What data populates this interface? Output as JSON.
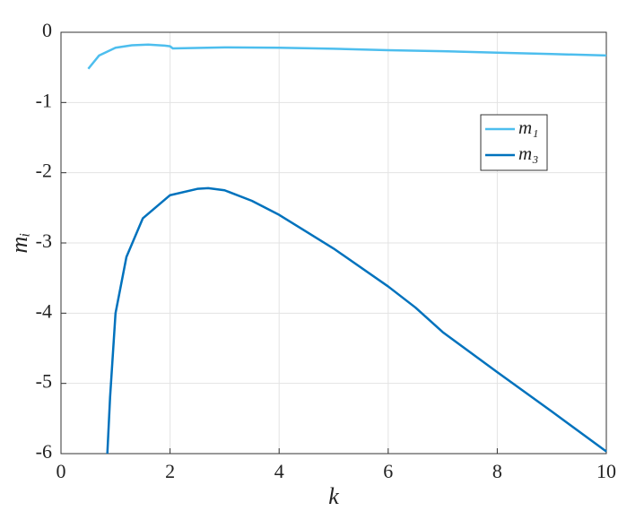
{
  "chart_data": {
    "type": "line",
    "xlabel": "k",
    "ylabel": "mᵢ",
    "xlim": [
      0,
      10
    ],
    "xticks": [
      0,
      2,
      4,
      6,
      8,
      10
    ],
    "ylim": [
      -6,
      0
    ],
    "yticks": [
      0,
      -1,
      -2,
      -3,
      -4,
      -5,
      -6
    ],
    "grid": true,
    "legend": "upper right",
    "series": [
      {
        "name": "m₁",
        "color": "#4DBEEE",
        "x": [
          0.5,
          0.7,
          1.0,
          1.3,
          1.6,
          1.9,
          2.0,
          2.05,
          3.0,
          4.0,
          5.0,
          6.0,
          7.0,
          8.0,
          9.0,
          10.0
        ],
        "values": [
          -0.52,
          -0.33,
          -0.22,
          -0.185,
          -0.175,
          -0.19,
          -0.2,
          -0.23,
          -0.215,
          -0.22,
          -0.235,
          -0.255,
          -0.27,
          -0.29,
          -0.31,
          -0.33
        ]
      },
      {
        "name": "m₃",
        "color": "#0072BD",
        "x": [
          0.85,
          0.9,
          1.0,
          1.2,
          1.5,
          2.0,
          2.5,
          2.7,
          3.0,
          3.5,
          4.0,
          5.0,
          6.0,
          6.5,
          7.0,
          8.0,
          9.0,
          10.0
        ],
        "values": [
          -6.0,
          -5.2,
          -4.0,
          -3.2,
          -2.65,
          -2.32,
          -2.23,
          -2.22,
          -2.25,
          -2.4,
          -2.6,
          -3.08,
          -3.62,
          -3.92,
          -4.27,
          -4.84,
          -5.4,
          -5.97
        ]
      }
    ]
  }
}
